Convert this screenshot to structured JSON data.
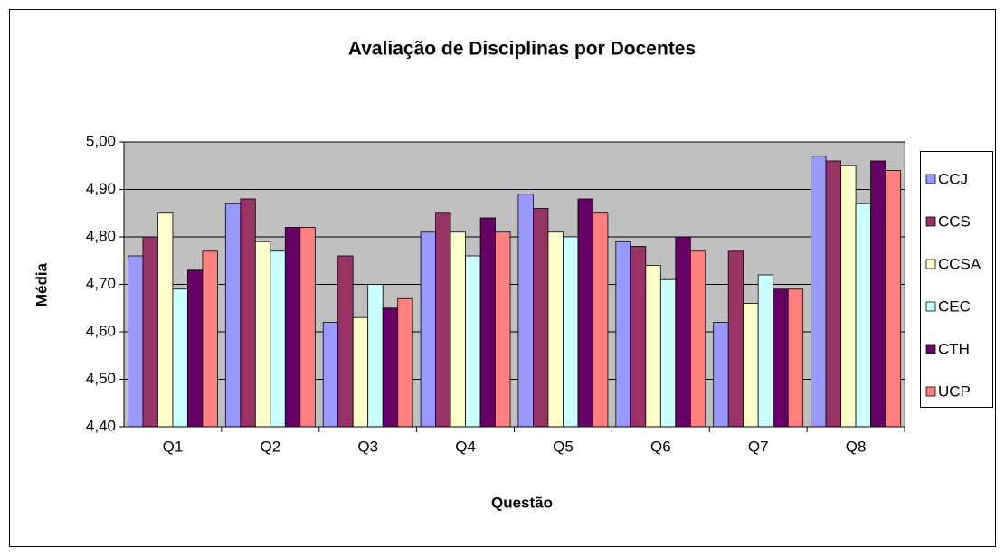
{
  "chart_data": {
    "type": "bar",
    "title": "Avaliação de Disciplinas por Docentes",
    "x_label": "Questão",
    "y_label": "Média",
    "categories": [
      "Q1",
      "Q2",
      "Q3",
      "Q4",
      "Q5",
      "Q6",
      "Q7",
      "Q8"
    ],
    "series": [
      {
        "name": "CCJ",
        "color": "#9999ff",
        "values": [
          4.76,
          4.87,
          4.62,
          4.81,
          4.89,
          4.79,
          4.62,
          4.97
        ]
      },
      {
        "name": "CCS",
        "color": "#993366",
        "values": [
          4.8,
          4.88,
          4.76,
          4.85,
          4.86,
          4.78,
          4.77,
          4.96
        ]
      },
      {
        "name": "CCSA",
        "color": "#ffffcc",
        "values": [
          4.85,
          4.79,
          4.63,
          4.81,
          4.81,
          4.74,
          4.66,
          4.95
        ]
      },
      {
        "name": "CEC",
        "color": "#ccffff",
        "values": [
          4.69,
          4.77,
          4.7,
          4.76,
          4.8,
          4.71,
          4.72,
          4.87
        ]
      },
      {
        "name": "CTH",
        "color": "#660066",
        "values": [
          4.73,
          4.82,
          4.65,
          4.84,
          4.88,
          4.8,
          4.69,
          4.96
        ]
      },
      {
        "name": "UCP",
        "color": "#ff8080",
        "values": [
          4.77,
          4.82,
          4.67,
          4.81,
          4.85,
          4.77,
          4.69,
          4.94
        ]
      }
    ],
    "ylim": [
      4.4,
      5.0
    ],
    "yticks": [
      {
        "value": 4.4,
        "label": "4,40"
      },
      {
        "value": 4.5,
        "label": "4,50"
      },
      {
        "value": 4.6,
        "label": "4,60"
      },
      {
        "value": 4.7,
        "label": "4,70"
      },
      {
        "value": 4.8,
        "label": "4,80"
      },
      {
        "value": 4.9,
        "label": "4,90"
      },
      {
        "value": 5.0,
        "label": "5,00"
      }
    ],
    "grid": true,
    "plot_background": "#c0c0c0",
    "legend": "right"
  }
}
